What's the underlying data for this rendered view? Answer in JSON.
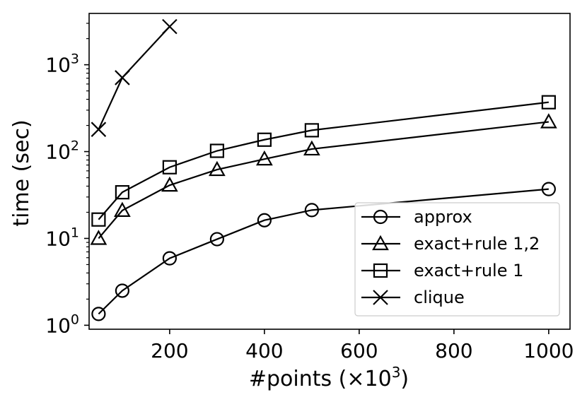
{
  "chart_data": {
    "type": "line",
    "xlabel": "#points (×10",
    "xlabel_exp": "3",
    "xlabel_close": ")",
    "ylabel": "time (sec)",
    "yscale": "log",
    "xlim": [
      30,
      1045
    ],
    "ylim": [
      0.9,
      3900
    ],
    "x_ticks": [
      200,
      400,
      600,
      800,
      1000
    ],
    "x_tick_labels": [
      "200",
      "400",
      "600",
      "800",
      "1000"
    ],
    "y_ticks": [
      1,
      10,
      100,
      1000
    ],
    "y_tick_bases": [
      "10",
      "10",
      "10",
      "10"
    ],
    "y_tick_exps": [
      "0",
      "1",
      "2",
      "3"
    ],
    "legend_position": "lower-right",
    "series": [
      {
        "name": "approx",
        "marker": "circle",
        "x": [
          50,
          100,
          200,
          300,
          400,
          500,
          1000
        ],
        "y": [
          1.35,
          2.5,
          5.9,
          9.8,
          16.2,
          21.2,
          37
        ]
      },
      {
        "name": "exact+rule 1,2",
        "marker": "triangle",
        "x": [
          50,
          100,
          200,
          300,
          400,
          500,
          1000
        ],
        "y": [
          10,
          21,
          41,
          62,
          82,
          107,
          220
        ]
      },
      {
        "name": "exact+rule 1",
        "marker": "square",
        "x": [
          50,
          100,
          200,
          300,
          400,
          500,
          1000
        ],
        "y": [
          16.5,
          34,
          66,
          102,
          137,
          176,
          370
        ]
      },
      {
        "name": "clique",
        "marker": "x",
        "x": [
          50,
          100,
          200
        ],
        "y": [
          180,
          710,
          2750
        ]
      }
    ]
  }
}
